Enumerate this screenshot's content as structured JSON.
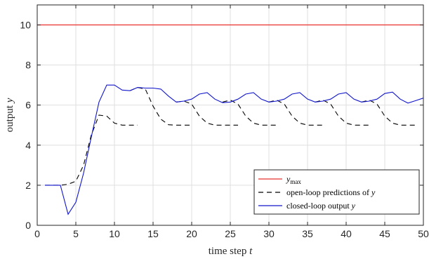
{
  "chart_data": {
    "type": "line",
    "xlabel": "time step t",
    "ylabel": "output y",
    "xlim": [
      0,
      50
    ],
    "ylim": [
      0,
      11
    ],
    "xticks": [
      0,
      5,
      10,
      15,
      20,
      25,
      30,
      35,
      40,
      45,
      50
    ],
    "yticks": [
      0,
      2,
      4,
      6,
      8,
      10
    ],
    "grid": true,
    "legend_position": "bottom-right",
    "series": [
      {
        "name": "y_max",
        "legend_main": "y",
        "legend_sub": "max",
        "color": "#e8302c",
        "style": "solid",
        "x": [
          0,
          50
        ],
        "y": [
          10,
          10
        ]
      },
      {
        "name": "closed-loop output y",
        "color": "#1015cc",
        "style": "solid",
        "x": [
          1,
          2,
          3,
          4,
          5,
          6,
          7,
          8,
          9,
          10,
          11,
          12,
          13,
          14,
          15,
          16,
          17,
          18,
          19,
          20,
          21,
          22,
          23,
          24,
          25,
          26,
          27,
          28,
          29,
          30,
          31,
          32,
          33,
          34,
          35,
          36,
          37,
          38,
          39,
          40,
          41,
          42,
          43,
          44,
          45,
          46,
          47,
          48,
          49,
          50
        ],
        "y": [
          2.0,
          2.0,
          2.0,
          0.55,
          1.15,
          2.6,
          4.4,
          6.15,
          7.0,
          7.0,
          6.75,
          6.72,
          6.88,
          6.85,
          6.85,
          6.8,
          6.45,
          6.15,
          6.2,
          6.3,
          6.55,
          6.62,
          6.3,
          6.12,
          6.15,
          6.3,
          6.55,
          6.62,
          6.3,
          6.15,
          6.2,
          6.3,
          6.55,
          6.62,
          6.3,
          6.15,
          6.2,
          6.3,
          6.55,
          6.62,
          6.3,
          6.15,
          6.2,
          6.3,
          6.58,
          6.65,
          6.3,
          6.1,
          6.22,
          6.35
        ]
      }
    ],
    "predictions": {
      "name": "open-loop predictions of y",
      "color": "#000000",
      "style": "dashed",
      "segments": [
        {
          "x": [
            1,
            2,
            3,
            4,
            5,
            6,
            7,
            8,
            9,
            10,
            11,
            12,
            13
          ],
          "y": [
            2.0,
            2.0,
            2.0,
            2.05,
            2.2,
            3.0,
            4.5,
            5.5,
            5.45,
            5.1,
            5.0,
            5.0,
            5.0
          ]
        },
        {
          "x": [
            12,
            13,
            14,
            15,
            16,
            17,
            18,
            19,
            20
          ],
          "y": [
            6.72,
            6.88,
            6.8,
            5.95,
            5.3,
            5.02,
            5.0,
            5.0,
            5.0
          ]
        },
        {
          "x": [
            18,
            19,
            20,
            21,
            22,
            23,
            24,
            25,
            26
          ],
          "y": [
            6.15,
            6.2,
            6.05,
            5.45,
            5.1,
            5.0,
            5.0,
            5.0,
            5.0
          ]
        },
        {
          "x": [
            24,
            25,
            26,
            27,
            28,
            29,
            30,
            31
          ],
          "y": [
            6.15,
            6.25,
            6.05,
            5.45,
            5.1,
            5.0,
            5.0,
            5.0
          ]
        },
        {
          "x": [
            30,
            31,
            32,
            33,
            34,
            35,
            36,
            37
          ],
          "y": [
            6.15,
            6.25,
            6.05,
            5.45,
            5.1,
            5.0,
            5.0,
            5.0
          ]
        },
        {
          "x": [
            36,
            37,
            38,
            39,
            40,
            41,
            42,
            43
          ],
          "y": [
            6.15,
            6.25,
            6.05,
            5.45,
            5.1,
            5.0,
            5.0,
            5.0
          ]
        },
        {
          "x": [
            42,
            43,
            44,
            45,
            46,
            47,
            48,
            49
          ],
          "y": [
            6.15,
            6.25,
            6.05,
            5.45,
            5.1,
            5.0,
            5.0,
            5.0
          ]
        }
      ]
    },
    "legend": [
      {
        "label": "y",
        "sub": "max",
        "color": "#e8302c",
        "dash": false
      },
      {
        "label": "open-loop predictions of y",
        "sub": "",
        "color": "#000000",
        "dash": true
      },
      {
        "label": "closed-loop output y",
        "sub": "",
        "color": "#1015cc",
        "dash": false
      }
    ]
  }
}
